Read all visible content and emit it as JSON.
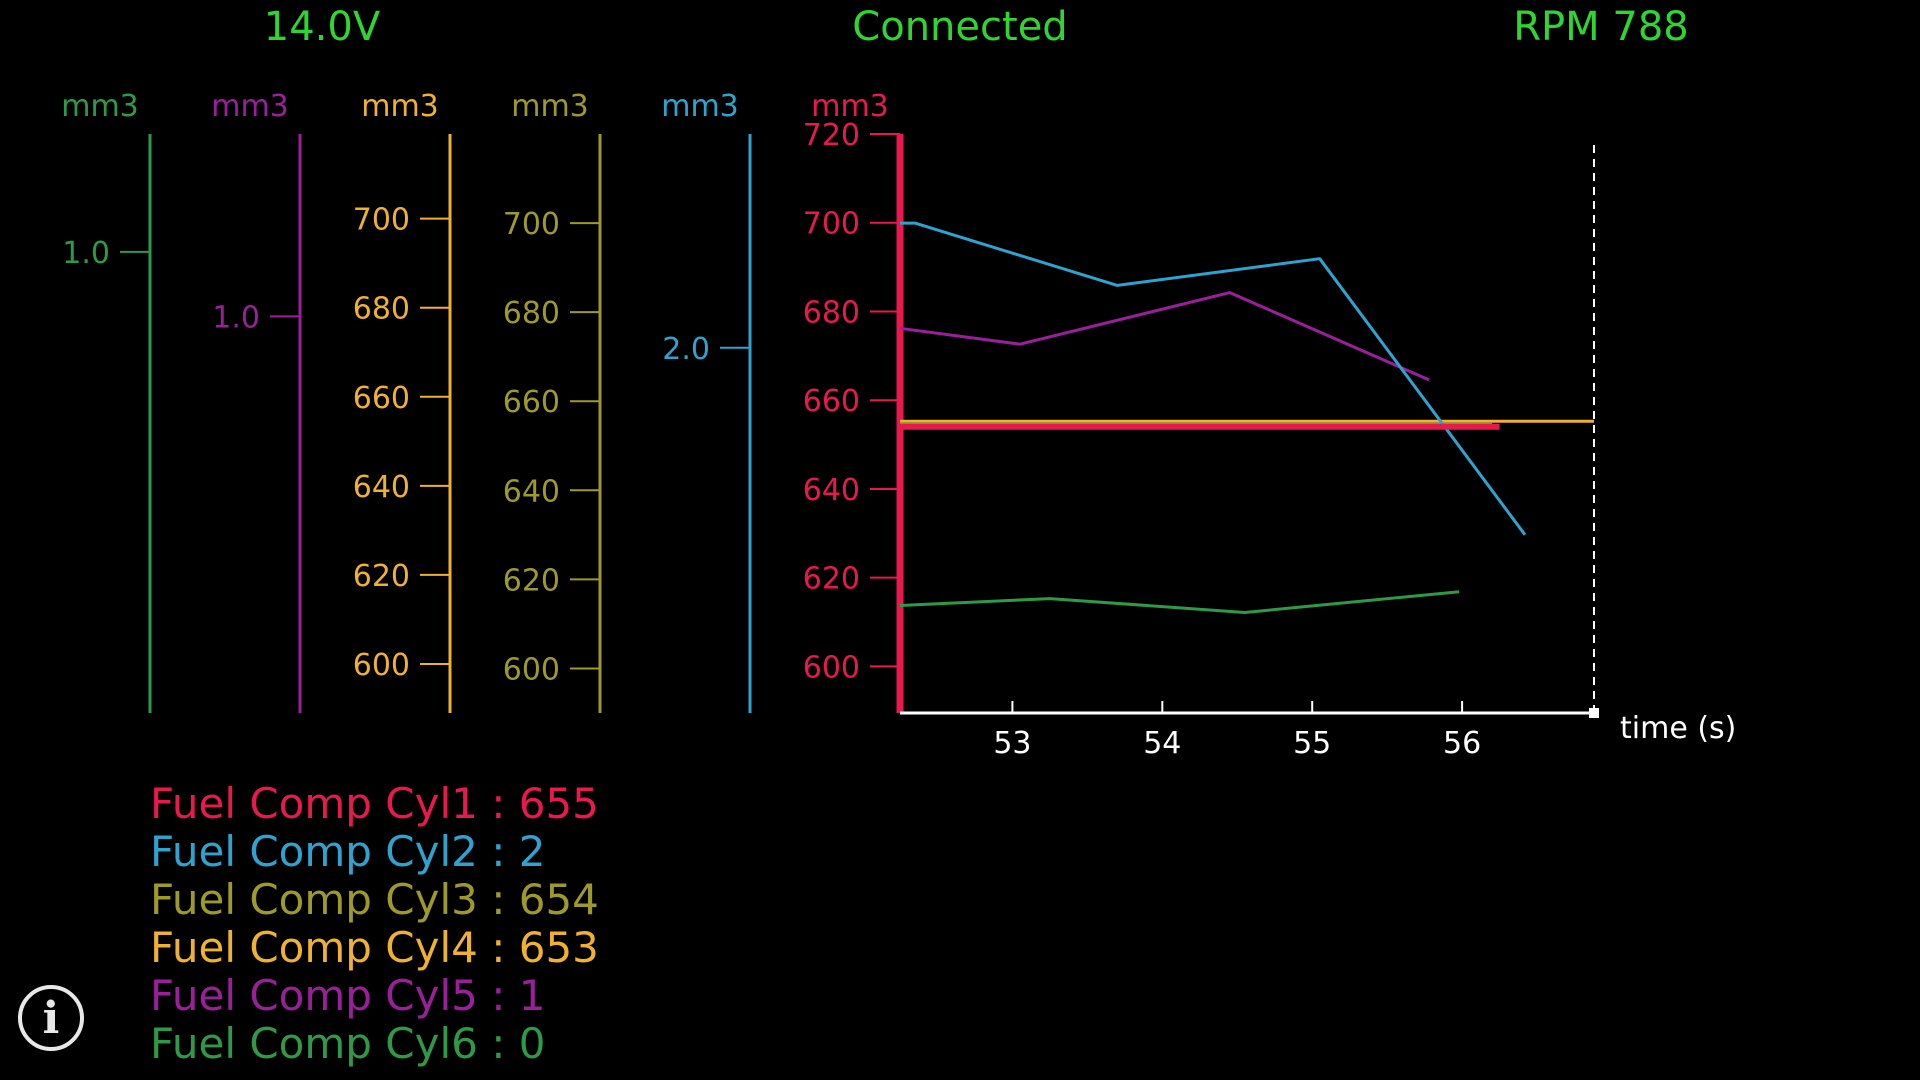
{
  "header": {
    "voltage": "14.0V",
    "connection_status": "Connected",
    "rpm": "RPM 788",
    "color": "#2fd62f"
  },
  "info_button": {
    "icon": "info-icon",
    "glyph": "i"
  },
  "chart_data": {
    "type": "line",
    "xlabel": "time (s)",
    "xlim": [
      52.25,
      56.88
    ],
    "x_ticks": [
      53,
      54,
      55,
      56
    ],
    "series": [
      {
        "name": "Fuel Comp Cyl6",
        "color": "#2e9a48",
        "unit": "mm3",
        "axis_ticks": [
          "1.0"
        ],
        "axis_tick_values": [
          1.0
        ],
        "ylim": [
          -0.33,
          1.34
        ],
        "current_value": "0",
        "x": [
          52.25,
          53.25,
          54.55,
          55.98
        ],
        "y": [
          -0.02,
          0.0,
          -0.04,
          0.02
        ]
      },
      {
        "name": "Fuel Comp Cyl5",
        "color": "#9b1f9b",
        "unit": "mm3",
        "axis_ticks": [
          "1.0"
        ],
        "axis_tick_values": [
          1.0
        ],
        "ylim": [
          0.0,
          1.46
        ],
        "current_value": "1",
        "x": [
          52.25,
          53.05,
          54.45,
          55.78
        ],
        "y": [
          0.97,
          0.93,
          1.06,
          0.84
        ]
      },
      {
        "name": "Fuel Comp Cyl4",
        "color": "#f0b030",
        "unit": "mm3",
        "axis_ticks": [
          "700",
          "680",
          "660",
          "640",
          "620",
          "600"
        ],
        "axis_tick_values": [
          700,
          680,
          660,
          640,
          620,
          600
        ],
        "ylim": [
          589,
          719
        ],
        "current_value": "653",
        "x": [
          52.25,
          56.88
        ],
        "y": [
          654.5,
          654.5
        ]
      },
      {
        "name": "Fuel Comp Cyl3",
        "color": "#9e9a2a",
        "unit": "mm3",
        "axis_ticks": [
          "700",
          "680",
          "660",
          "640",
          "620",
          "600"
        ],
        "axis_tick_values": [
          700,
          680,
          660,
          640,
          620,
          600
        ],
        "ylim": [
          590,
          720
        ],
        "current_value": "654",
        "x": [
          52.25,
          56.2
        ],
        "y": [
          655,
          655
        ]
      },
      {
        "name": "Fuel Comp Cyl2",
        "color": "#2fa3d0",
        "unit": "mm3",
        "axis_ticks": [
          "2.0"
        ],
        "axis_tick_values": [
          2.0
        ],
        "ylim": [
          1.59,
          2.24
        ],
        "current_value": "2",
        "x": [
          52.25,
          52.35,
          53.7,
          55.05,
          56.42
        ],
        "y": [
          2.14,
          2.14,
          2.07,
          2.1,
          1.79
        ]
      },
      {
        "name": "Fuel Comp Cyl1",
        "color": "#e8194d",
        "unit": "mm3",
        "axis_ticks": [
          "720",
          "700",
          "680",
          "660",
          "640",
          "620",
          "600"
        ],
        "axis_tick_values": [
          720,
          700,
          680,
          660,
          640,
          620,
          600
        ],
        "ylim": [
          589.5,
          720
        ],
        "current_value": "655",
        "x": [
          52.25,
          56.25
        ],
        "y": [
          654,
          654
        ]
      }
    ]
  }
}
